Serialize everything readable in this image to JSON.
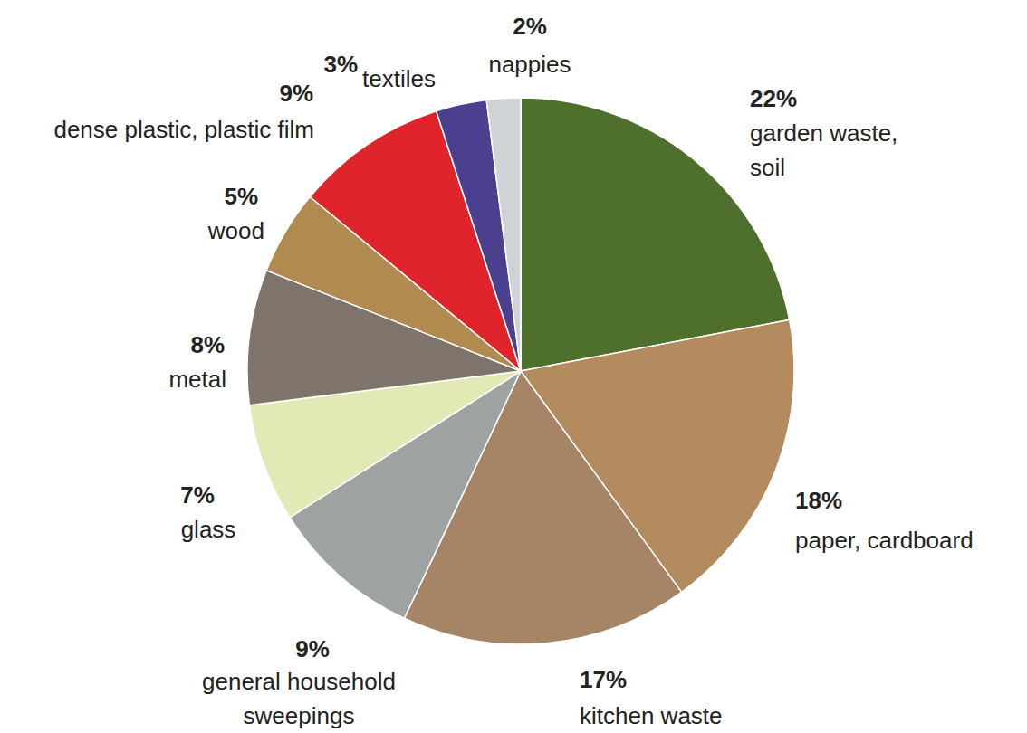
{
  "chart_data": {
    "type": "pie",
    "categories": [
      "garden waste, soil",
      "paper, cardboard",
      "kitchen waste",
      "general household sweepings",
      "glass",
      "metal",
      "wood",
      "dense plastic, plastic film",
      "textiles",
      "nappies"
    ],
    "values": [
      22,
      18,
      17,
      9,
      7,
      8,
      5,
      9,
      3,
      2
    ],
    "value_labels": [
      "22%",
      "18%",
      "17%",
      "9%",
      "7%",
      "8%",
      "5%",
      "9%",
      "3%",
      "2%"
    ],
    "colors": [
      "#4f6f2c",
      "#b38b5f",
      "#a68566",
      "#9ea3a2",
      "#e3e9b4",
      "#7f746c",
      "#b08a4e",
      "#e0242c",
      "#4b3f8f",
      "#cfd3d6"
    ],
    "data_labels": true
  }
}
